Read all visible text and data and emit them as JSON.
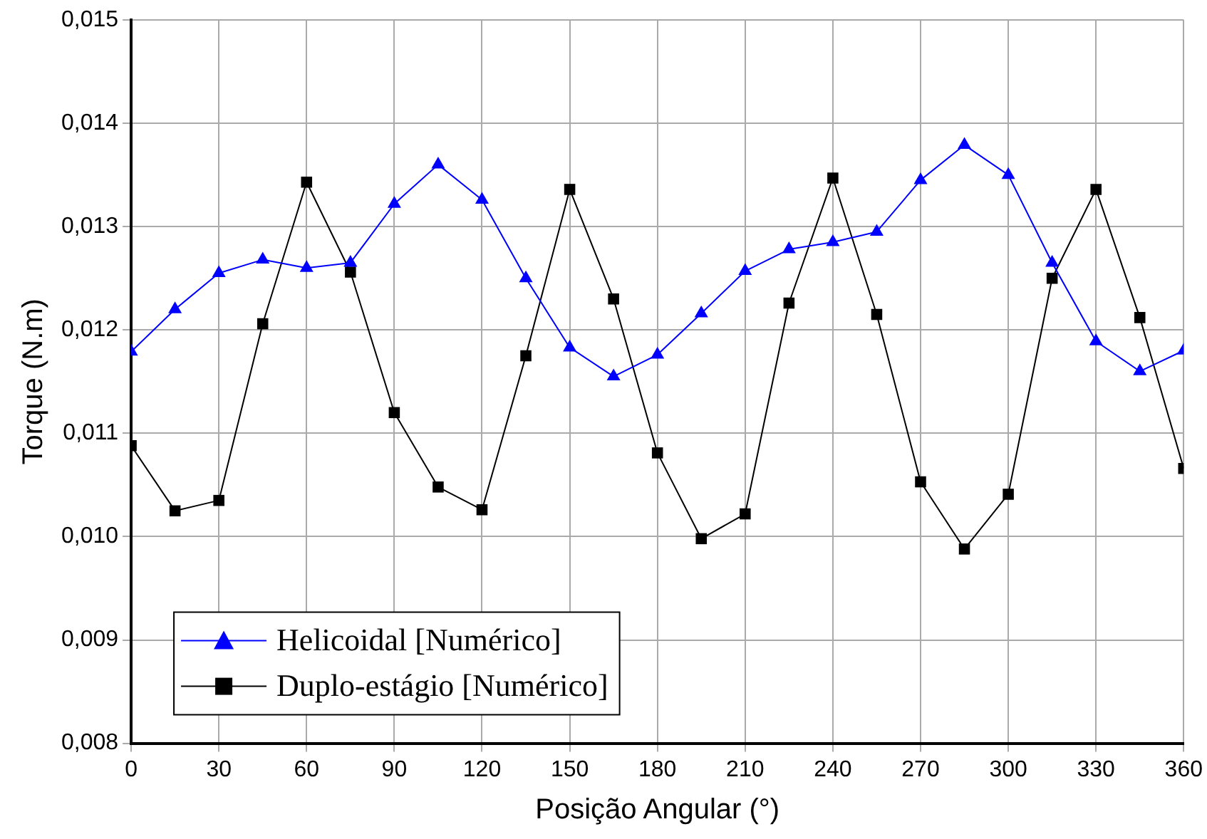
{
  "chart_data": {
    "type": "line",
    "xlabel": "Posição Angular (°)",
    "ylabel": "Torque (N.m)",
    "x": [
      0,
      15,
      30,
      45,
      60,
      75,
      90,
      105,
      120,
      135,
      150,
      165,
      180,
      195,
      210,
      225,
      240,
      255,
      270,
      285,
      300,
      315,
      330,
      345,
      360
    ],
    "xlim": [
      0,
      360
    ],
    "xticks": [
      0,
      30,
      60,
      90,
      120,
      150,
      180,
      210,
      240,
      270,
      300,
      330,
      360
    ],
    "ylim": [
      0.008,
      0.015
    ],
    "yticks": [
      {
        "value": 0.008,
        "label": "0,008"
      },
      {
        "value": 0.009,
        "label": "0,009"
      },
      {
        "value": 0.01,
        "label": "0,010"
      },
      {
        "value": 0.011,
        "label": "0,011"
      },
      {
        "value": 0.012,
        "label": "0,012"
      },
      {
        "value": 0.013,
        "label": "0,013"
      },
      {
        "value": 0.014,
        "label": "0,014"
      },
      {
        "value": 0.015,
        "label": "0,015"
      }
    ],
    "grid": true,
    "legend": "bottom left",
    "series": [
      {
        "name": "Helicoidal [Numérico]",
        "color": "#0000ff",
        "marker": "triangle",
        "values": [
          0.01179,
          0.0122,
          0.01255,
          0.01268,
          0.0126,
          0.01265,
          0.01322,
          0.0136,
          0.01326,
          0.0125,
          0.01183,
          0.01155,
          0.01176,
          0.01216,
          0.01257,
          0.01278,
          0.01285,
          0.01295,
          0.01345,
          0.01379,
          0.0135,
          0.01265,
          0.01189,
          0.0116,
          0.0118
        ]
      },
      {
        "name": "Duplo-estágio [Numérico]",
        "color": "#000000",
        "marker": "square",
        "values": [
          0.01088,
          0.01025,
          0.01035,
          0.01206,
          0.01343,
          0.01256,
          0.0112,
          0.01048,
          0.01026,
          0.01175,
          0.01336,
          0.0123,
          0.01081,
          0.00998,
          0.01022,
          0.01226,
          0.01347,
          0.01215,
          0.01053,
          0.00988,
          0.01041,
          0.0125,
          0.01336,
          0.01212,
          0.01066
        ]
      }
    ]
  }
}
